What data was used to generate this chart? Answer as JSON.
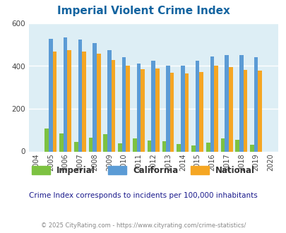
{
  "title": "Imperial Violent Crime Index",
  "years": [
    2004,
    2005,
    2006,
    2007,
    2008,
    2009,
    2010,
    2011,
    2012,
    2013,
    2014,
    2015,
    2016,
    2017,
    2018,
    2019,
    2020
  ],
  "imperial": [
    0,
    107,
    83,
    43,
    65,
    80,
    38,
    60,
    50,
    47,
    35,
    28,
    40,
    62,
    53,
    30,
    0
  ],
  "california": [
    0,
    527,
    533,
    525,
    507,
    473,
    440,
    410,
    424,
    400,
    400,
    426,
    445,
    451,
    451,
    440,
    0
  ],
  "national": [
    0,
    469,
    474,
    467,
    458,
    429,
    403,
    386,
    387,
    368,
    366,
    373,
    400,
    394,
    381,
    379,
    0
  ],
  "color_imperial": "#7dc242",
  "color_california": "#5b9bd5",
  "color_national": "#f5a623",
  "bg_color": "#ddeef5",
  "ylim": [
    0,
    600
  ],
  "yticks": [
    0,
    200,
    400,
    600
  ],
  "subtitle": "Crime Index corresponds to incidents per 100,000 inhabitants",
  "footer": "© 2025 CityRating.com - https://www.cityrating.com/crime-statistics/",
  "title_color": "#1464a0",
  "subtitle_color": "#1a1a8c",
  "footer_color": "#888888",
  "bar_width": 0.27
}
